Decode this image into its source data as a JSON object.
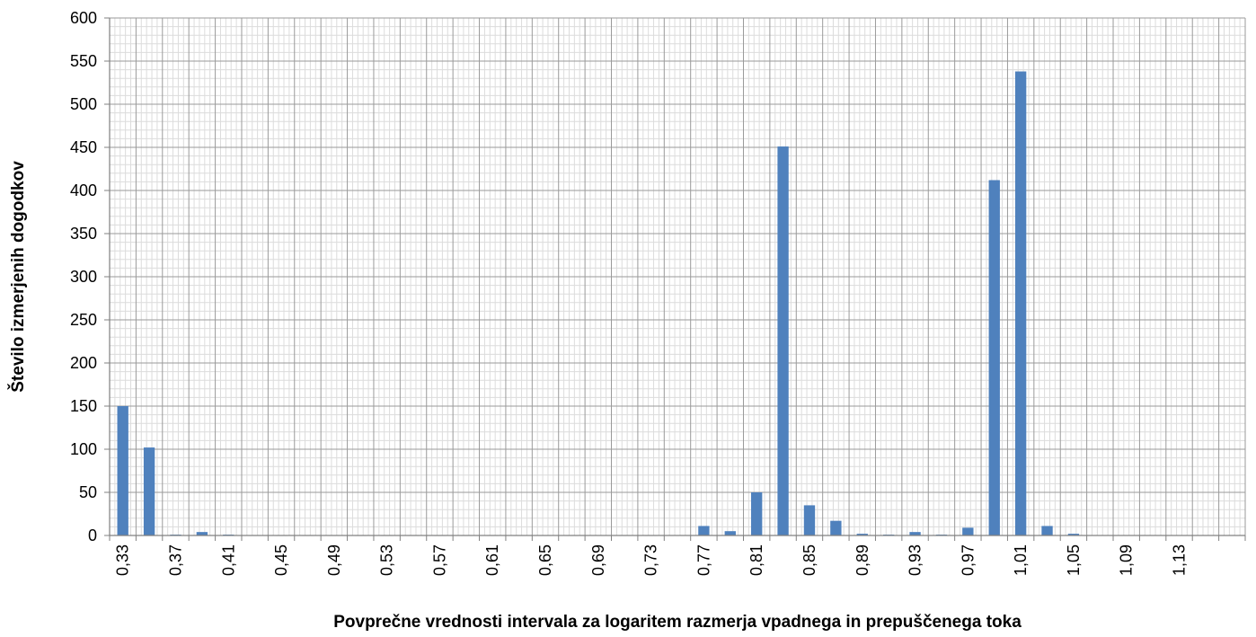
{
  "chart_data": {
    "type": "bar",
    "title": "",
    "xlabel": "Povprečne vrednosti intervala za logaritem razmerja vpadnega in prepuščenega toka",
    "ylabel": "Število izmerjenih dogodkov",
    "ylim": [
      0,
      600
    ],
    "yticks": [
      "0",
      "50",
      "100",
      "150",
      "200",
      "250",
      "300",
      "350",
      "400",
      "450",
      "500",
      "550",
      "600"
    ],
    "grid": true,
    "legend": "none",
    "bar_color": "#4F81BD",
    "categories": [
      "0,33",
      "0,35",
      "0,37",
      "0,39",
      "0,41",
      "0,43",
      "0,45",
      "0,47",
      "0,49",
      "0,51",
      "0,53",
      "0,55",
      "0,57",
      "0,59",
      "0,61",
      "0,63",
      "0,65",
      "0,67",
      "0,69",
      "0,71",
      "0,73",
      "0,75",
      "0,77",
      "0,79",
      "0,81",
      "0,83",
      "0,85",
      "0,87",
      "0,89",
      "0,91",
      "0,93",
      "0,95",
      "0,97",
      "0,99",
      "1,01",
      "1,03",
      "1,05",
      "1,07",
      "1,09",
      "1,11",
      "1,13",
      "1,15",
      "1,17"
    ],
    "tick_labels": [
      "0,33",
      "",
      "0,37",
      "",
      "0,41",
      "",
      "0,45",
      "",
      "0,49",
      "",
      "0,53",
      "",
      "0,57",
      "",
      "0,61",
      "",
      "0,65",
      "",
      "0,69",
      "",
      "0,73",
      "",
      "0,77",
      "",
      "0,81",
      "",
      "0,85",
      "",
      "0,89",
      "",
      "0,93",
      "",
      "0,97",
      "",
      "1,01",
      "",
      "1,05",
      "",
      "1,09",
      "",
      "1,13",
      "",
      ""
    ],
    "values": [
      150,
      102,
      1,
      4,
      1,
      0.5,
      0.5,
      0.5,
      0.5,
      0.5,
      0.5,
      0.5,
      0.5,
      0.5,
      0.5,
      0.5,
      0.5,
      0.5,
      0,
      0.5,
      0.5,
      0,
      11,
      5,
      50,
      451,
      35,
      17,
      2,
      1,
      4,
      1,
      9,
      412,
      538,
      11,
      2,
      0,
      0,
      0,
      0,
      0,
      0
    ]
  }
}
